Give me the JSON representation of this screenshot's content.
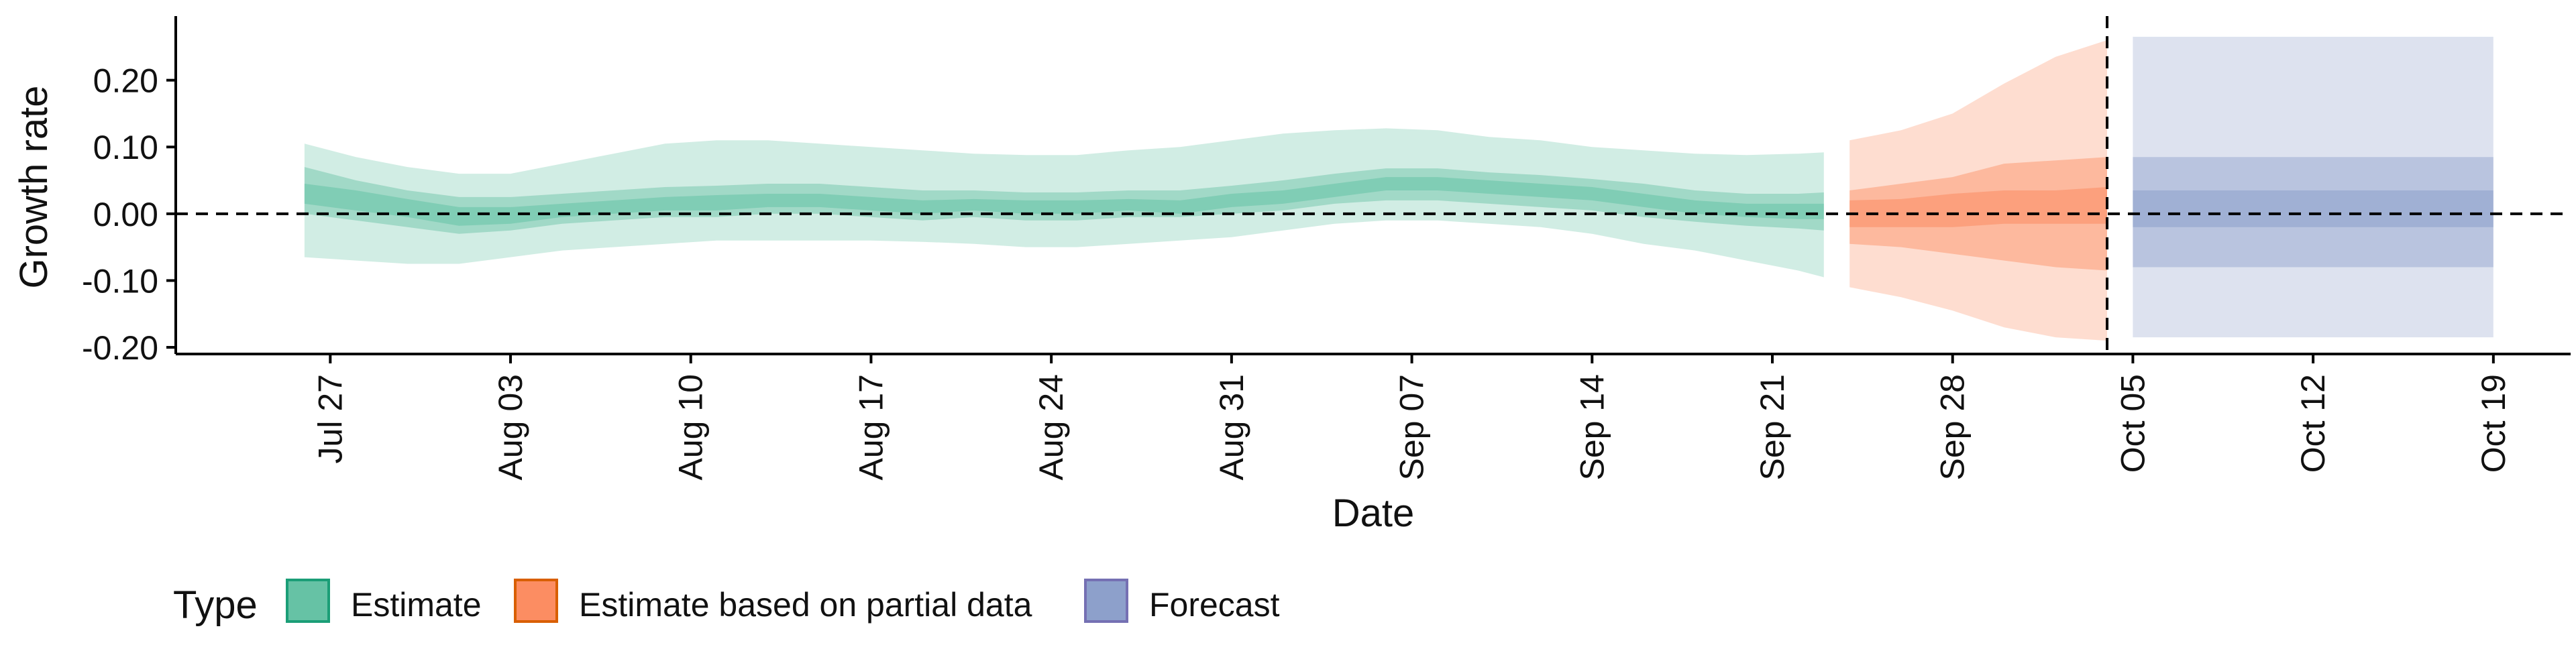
{
  "chart_data": {
    "type": "area",
    "xlabel": "Date",
    "ylabel": "Growth rate",
    "x_type": "date",
    "xlim": [
      "2020-07-21",
      "2020-10-22"
    ],
    "ylim": [
      -0.21,
      0.29
    ],
    "y_ticks": [
      -0.2,
      -0.1,
      0.0,
      0.1,
      0.2
    ],
    "y_tick_labels": [
      "-0.20",
      "-0.10",
      "0.00",
      "0.10",
      "0.20"
    ],
    "x_ticks": [
      "2020-07-27",
      "2020-08-03",
      "2020-08-10",
      "2020-08-17",
      "2020-08-24",
      "2020-08-31",
      "2020-09-07",
      "2020-09-14",
      "2020-09-21",
      "2020-09-28",
      "2020-10-05",
      "2020-10-12",
      "2020-10-19"
    ],
    "x_tick_labels": [
      "Jul 27",
      "Aug 03",
      "Aug 10",
      "Aug 17",
      "Aug 24",
      "Aug 31",
      "Sep 07",
      "Sep 14",
      "Sep 21",
      "Sep 28",
      "Oct 05",
      "Oct 12",
      "Oct 19"
    ],
    "reference_lines": {
      "horizontal_y": 0.0,
      "vertical_date": "2020-10-04",
      "style": "dashed"
    },
    "grid": false,
    "legend": {
      "title": "Type",
      "position": "bottom-left"
    },
    "series": [
      {
        "name": "Estimate",
        "color": "#1b9e77",
        "fill": "#66c2a5",
        "dates": [
          "2020-07-26",
          "2020-07-28",
          "2020-07-30",
          "2020-08-01",
          "2020-08-03",
          "2020-08-05",
          "2020-08-07",
          "2020-08-09",
          "2020-08-11",
          "2020-08-13",
          "2020-08-15",
          "2020-08-17",
          "2020-08-19",
          "2020-08-21",
          "2020-08-23",
          "2020-08-25",
          "2020-08-27",
          "2020-08-29",
          "2020-08-31",
          "2020-09-02",
          "2020-09-04",
          "2020-09-06",
          "2020-09-08",
          "2020-09-10",
          "2020-09-12",
          "2020-09-14",
          "2020-09-16",
          "2020-09-18",
          "2020-09-20",
          "2020-09-22",
          "2020-09-23"
        ],
        "median": [
          0.03,
          0.02,
          0.01,
          -0.005,
          -0.005,
          0.005,
          0.01,
          0.015,
          0.015,
          0.02,
          0.02,
          0.015,
          0.01,
          0.015,
          0.01,
          0.01,
          0.015,
          0.01,
          0.02,
          0.025,
          0.035,
          0.045,
          0.045,
          0.04,
          0.035,
          0.03,
          0.02,
          0.01,
          0.005,
          0.005,
          0.005
        ],
        "ci_90": [
          [
            -0.065,
            0.105
          ],
          [
            -0.07,
            0.085
          ],
          [
            -0.075,
            0.07
          ],
          [
            -0.075,
            0.06
          ],
          [
            -0.065,
            0.06
          ],
          [
            -0.055,
            0.075
          ],
          [
            -0.05,
            0.09
          ],
          [
            -0.045,
            0.105
          ],
          [
            -0.04,
            0.11
          ],
          [
            -0.04,
            0.11
          ],
          [
            -0.04,
            0.105
          ],
          [
            -0.04,
            0.1
          ],
          [
            -0.042,
            0.095
          ],
          [
            -0.045,
            0.09
          ],
          [
            -0.05,
            0.088
          ],
          [
            -0.05,
            0.088
          ],
          [
            -0.045,
            0.095
          ],
          [
            -0.04,
            0.1
          ],
          [
            -0.035,
            0.11
          ],
          [
            -0.025,
            0.12
          ],
          [
            -0.015,
            0.125
          ],
          [
            -0.01,
            0.128
          ],
          [
            -0.01,
            0.125
          ],
          [
            -0.015,
            0.115
          ],
          [
            -0.02,
            0.11
          ],
          [
            -0.03,
            0.1
          ],
          [
            -0.045,
            0.095
          ],
          [
            -0.055,
            0.09
          ],
          [
            -0.07,
            0.088
          ],
          [
            -0.085,
            0.09
          ],
          [
            -0.095,
            0.092
          ]
        ],
        "ci_50": [
          [
            0.0,
            0.07
          ],
          [
            -0.01,
            0.05
          ],
          [
            -0.02,
            0.035
          ],
          [
            -0.03,
            0.025
          ],
          [
            -0.025,
            0.025
          ],
          [
            -0.015,
            0.03
          ],
          [
            -0.01,
            0.035
          ],
          [
            -0.005,
            0.04
          ],
          [
            -0.005,
            0.042
          ],
          [
            0.0,
            0.045
          ],
          [
            0.0,
            0.045
          ],
          [
            -0.005,
            0.04
          ],
          [
            -0.01,
            0.035
          ],
          [
            -0.005,
            0.035
          ],
          [
            -0.01,
            0.032
          ],
          [
            -0.01,
            0.032
          ],
          [
            -0.005,
            0.035
          ],
          [
            -0.005,
            0.035
          ],
          [
            0.0,
            0.042
          ],
          [
            0.005,
            0.05
          ],
          [
            0.015,
            0.06
          ],
          [
            0.02,
            0.068
          ],
          [
            0.02,
            0.068
          ],
          [
            0.015,
            0.062
          ],
          [
            0.01,
            0.058
          ],
          [
            0.005,
            0.052
          ],
          [
            -0.005,
            0.045
          ],
          [
            -0.012,
            0.035
          ],
          [
            -0.018,
            0.03
          ],
          [
            -0.022,
            0.03
          ],
          [
            -0.025,
            0.032
          ]
        ],
        "ci_20": [
          [
            0.015,
            0.045
          ],
          [
            0.005,
            0.035
          ],
          [
            -0.005,
            0.022
          ],
          [
            -0.018,
            0.01
          ],
          [
            -0.015,
            0.01
          ],
          [
            -0.005,
            0.015
          ],
          [
            0.0,
            0.02
          ],
          [
            0.005,
            0.025
          ],
          [
            0.005,
            0.028
          ],
          [
            0.01,
            0.03
          ],
          [
            0.01,
            0.03
          ],
          [
            0.005,
            0.025
          ],
          [
            0.0,
            0.02
          ],
          [
            0.005,
            0.022
          ],
          [
            0.0,
            0.02
          ],
          [
            0.0,
            0.02
          ],
          [
            0.005,
            0.022
          ],
          [
            0.0,
            0.02
          ],
          [
            0.01,
            0.03
          ],
          [
            0.015,
            0.035
          ],
          [
            0.025,
            0.045
          ],
          [
            0.035,
            0.055
          ],
          [
            0.035,
            0.055
          ],
          [
            0.03,
            0.05
          ],
          [
            0.025,
            0.045
          ],
          [
            0.02,
            0.04
          ],
          [
            0.01,
            0.03
          ],
          [
            0.0,
            0.02
          ],
          [
            -0.005,
            0.015
          ],
          [
            -0.008,
            0.015
          ],
          [
            -0.008,
            0.015
          ]
        ]
      },
      {
        "name": "Estimate based on partial data",
        "color": "#d95f02",
        "fill": "#fc8d62",
        "dates": [
          "2020-09-24",
          "2020-09-26",
          "2020-09-28",
          "2020-09-30",
          "2020-10-02",
          "2020-10-04"
        ],
        "median": [
          0.0,
          0.0,
          0.005,
          0.01,
          0.01,
          0.015
        ],
        "ci_90": [
          [
            -0.11,
            0.11
          ],
          [
            -0.125,
            0.125
          ],
          [
            -0.145,
            0.15
          ],
          [
            -0.17,
            0.195
          ],
          [
            -0.185,
            0.235
          ],
          [
            -0.19,
            0.26
          ]
        ],
        "ci_50": [
          [
            -0.045,
            0.035
          ],
          [
            -0.05,
            0.045
          ],
          [
            -0.06,
            0.055
          ],
          [
            -0.07,
            0.075
          ],
          [
            -0.08,
            0.08
          ],
          [
            -0.085,
            0.085
          ]
        ],
        "ci_20": [
          [
            -0.02,
            0.02
          ],
          [
            -0.02,
            0.022
          ],
          [
            -0.02,
            0.03
          ],
          [
            -0.015,
            0.035
          ],
          [
            -0.015,
            0.035
          ],
          [
            -0.015,
            0.04
          ]
        ]
      },
      {
        "name": "Forecast",
        "color": "#7570b3",
        "fill": "#8da0cb",
        "dates": [
          "2020-10-05",
          "2020-10-19"
        ],
        "median": [
          0.01,
          0.01
        ],
        "ci_90": [
          [
            -0.185,
            0.265
          ],
          [
            -0.185,
            0.265
          ]
        ],
        "ci_50": [
          [
            -0.08,
            0.085
          ],
          [
            -0.08,
            0.085
          ]
        ],
        "ci_20": [
          [
            -0.02,
            0.035
          ],
          [
            -0.02,
            0.035
          ]
        ]
      }
    ]
  }
}
